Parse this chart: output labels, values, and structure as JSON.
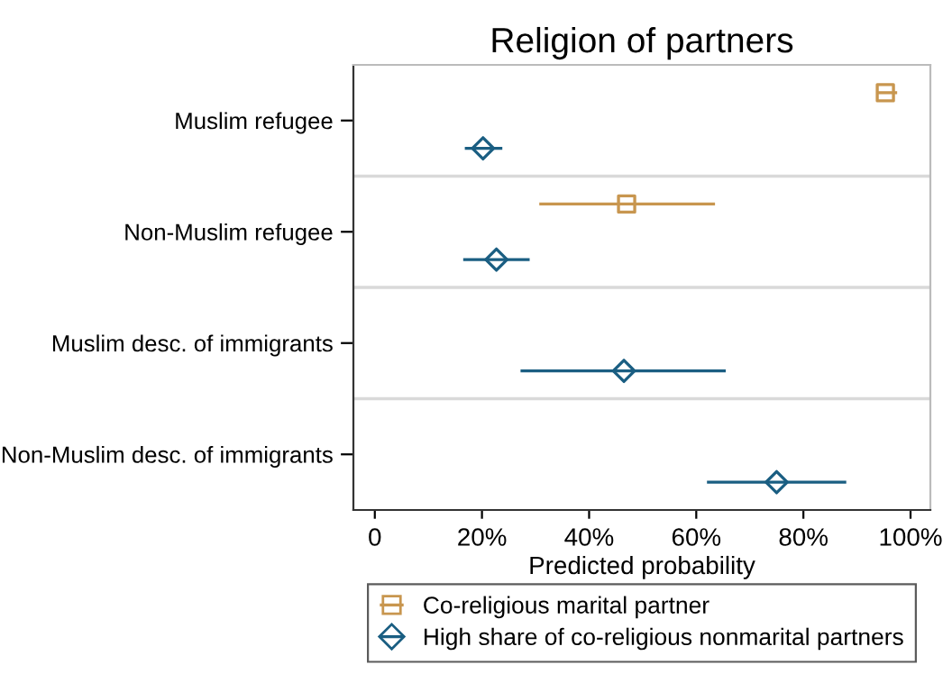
{
  "chart_data": {
    "type": "scatter",
    "orientation": "horizontal",
    "title": "Religion of partners",
    "xlabel": "Predicted probability",
    "categories": [
      "Muslim refugee",
      "Non-Muslim refugee",
      "Muslim desc. of immigrants",
      "Non-Muslim desc. of immigrants"
    ],
    "series": [
      {
        "name": "Co-religious marital partner",
        "color": "#c8964f",
        "marker": "square",
        "values": [
          95.3,
          47.0,
          null,
          null
        ],
        "errors": [
          [
            93.8,
            97.5
          ],
          [
            30.7,
            63.5
          ],
          null,
          null
        ]
      },
      {
        "name": "High share of co-religious nonmarital partners",
        "color": "#1a5e82",
        "marker": "diamond",
        "values": [
          20.2,
          22.7,
          46.5,
          75.0
        ],
        "errors": [
          [
            16.8,
            23.8
          ],
          [
            16.5,
            28.9
          ],
          [
            27.2,
            65.5
          ],
          [
            62.0,
            88.0
          ]
        ]
      }
    ],
    "xlim": [
      -4,
      103.7
    ],
    "xticks": [
      {
        "value": 0,
        "label": "0"
      },
      {
        "value": 20,
        "label": "20%"
      },
      {
        "value": 40,
        "label": "40%"
      },
      {
        "value": 60,
        "label": "60%"
      },
      {
        "value": 80,
        "label": "80%"
      },
      {
        "value": 100,
        "label": "100%"
      }
    ],
    "grid": "y",
    "legend": "bottom"
  }
}
